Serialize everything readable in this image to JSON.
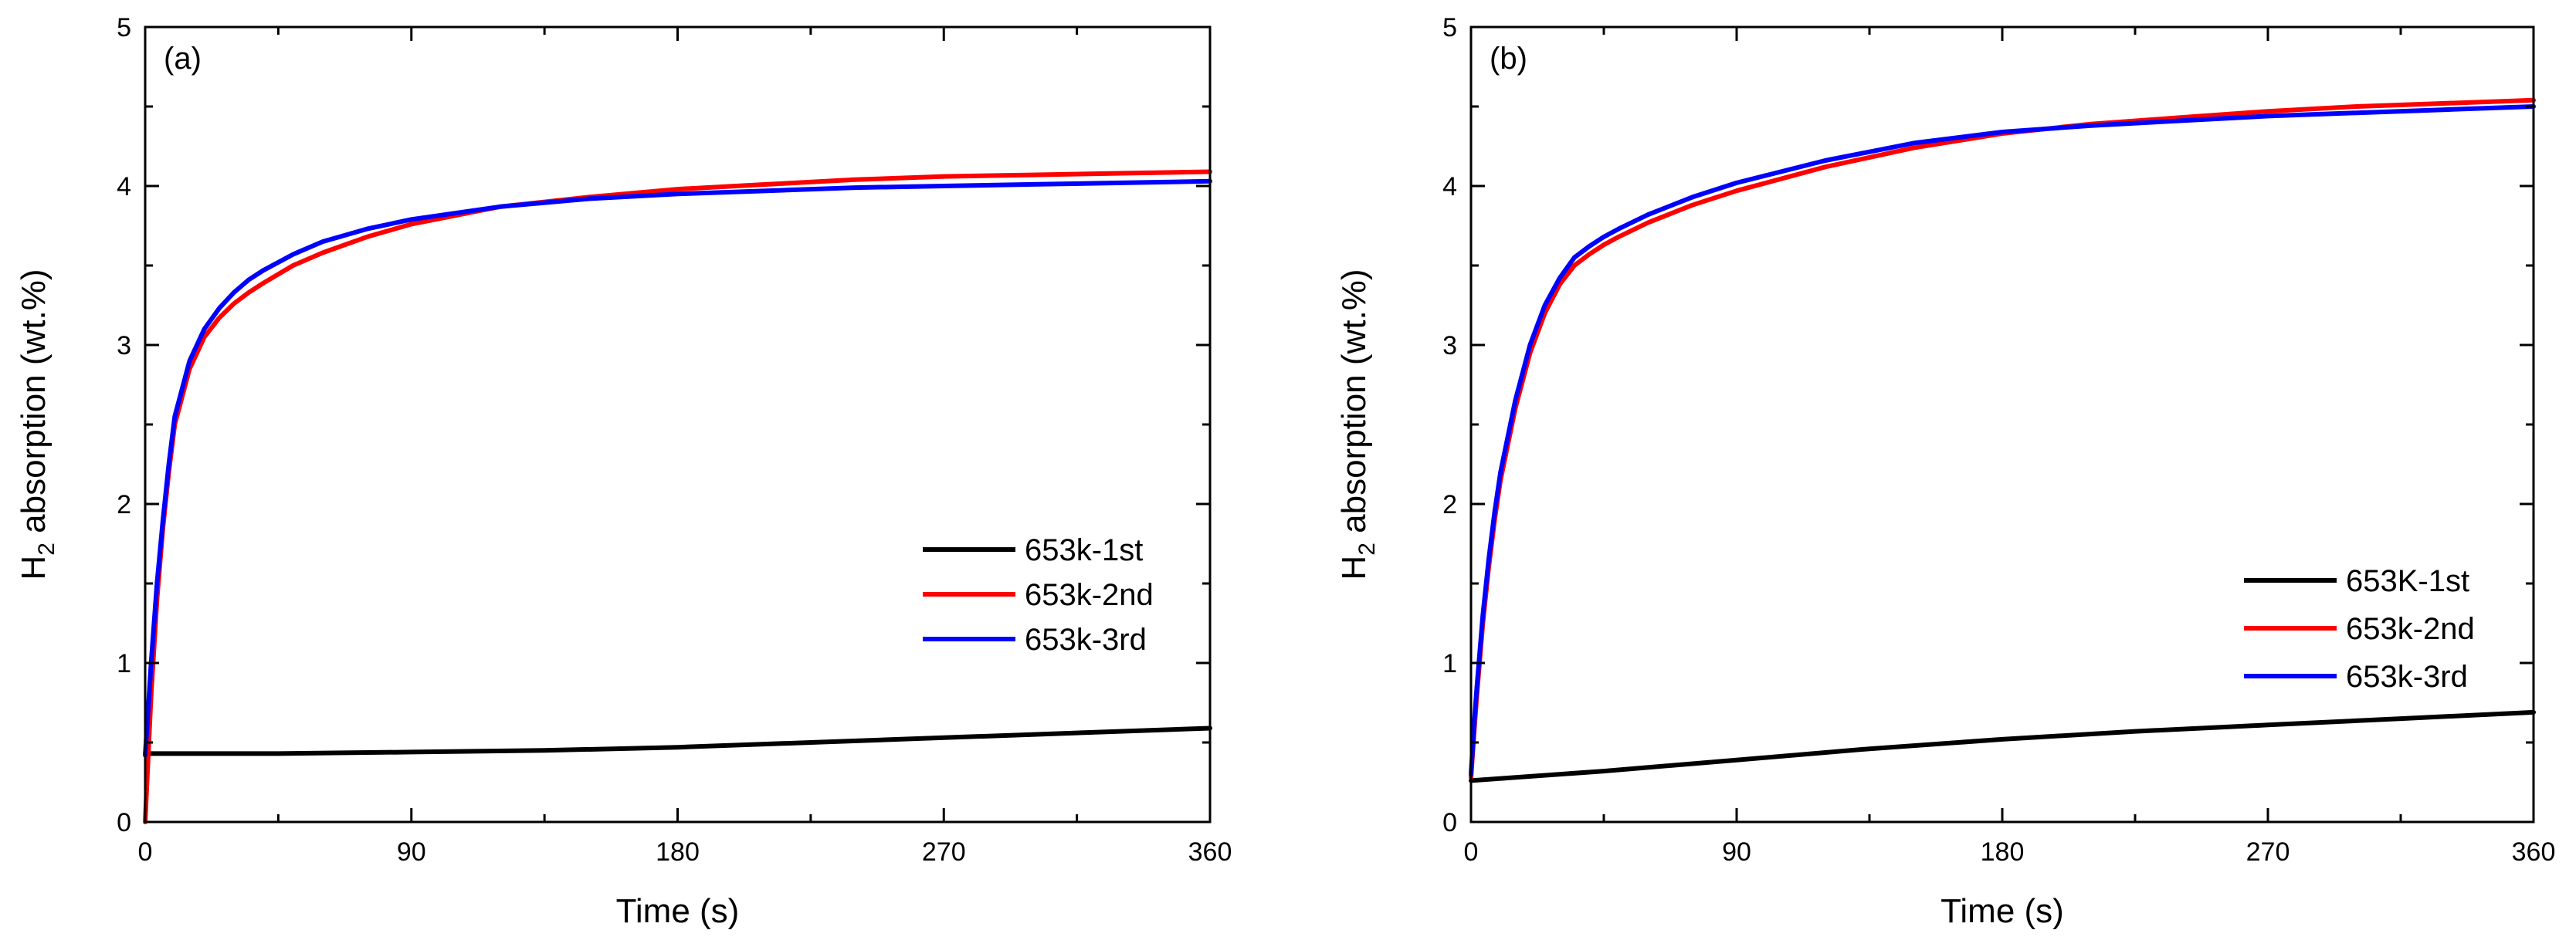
{
  "chart_data": [
    {
      "type": "line",
      "panel_label": "(a)",
      "xlabel": "Time (s)",
      "ylabel_main": "H",
      "ylabel_sub": "2",
      "ylabel_rest": " absorption (wt.%)",
      "xlim": [
        0,
        360
      ],
      "ylim": [
        0,
        5
      ],
      "xticks": [
        0,
        90,
        180,
        270,
        360
      ],
      "yticks": [
        0,
        1,
        2,
        3,
        4,
        5
      ],
      "legend_position": "center-right",
      "series": [
        {
          "name": "653k-1st",
          "color": "#000000",
          "x": [
            0,
            45,
            90,
            135,
            180,
            225,
            270,
            315,
            360
          ],
          "y": [
            0.43,
            0.43,
            0.44,
            0.45,
            0.47,
            0.5,
            0.53,
            0.56,
            0.59
          ]
        },
        {
          "name": "653k-2nd",
          "color": "#ff0000",
          "x": [
            0,
            1,
            2,
            4,
            6,
            8,
            10,
            15,
            20,
            25,
            30,
            35,
            40,
            50,
            60,
            75,
            90,
            120,
            150,
            180,
            210,
            240,
            270,
            300,
            330,
            360
          ],
          "y": [
            0,
            0.4,
            0.8,
            1.4,
            1.85,
            2.2,
            2.5,
            2.85,
            3.05,
            3.17,
            3.26,
            3.33,
            3.39,
            3.5,
            3.58,
            3.68,
            3.76,
            3.87,
            3.93,
            3.98,
            4.01,
            4.04,
            4.06,
            4.07,
            4.08,
            4.09
          ]
        },
        {
          "name": "653k-3rd",
          "color": "#0000ff",
          "x": [
            0,
            1,
            2,
            4,
            6,
            8,
            10,
            15,
            20,
            25,
            30,
            35,
            40,
            50,
            60,
            75,
            90,
            120,
            150,
            180,
            210,
            240,
            270,
            300,
            330,
            360
          ],
          "y": [
            0.42,
            0.7,
            1.0,
            1.5,
            1.9,
            2.25,
            2.55,
            2.9,
            3.1,
            3.23,
            3.33,
            3.41,
            3.47,
            3.57,
            3.65,
            3.73,
            3.79,
            3.87,
            3.92,
            3.95,
            3.97,
            3.99,
            4.0,
            4.01,
            4.02,
            4.03
          ]
        }
      ]
    },
    {
      "type": "line",
      "panel_label": "(b)",
      "xlabel": "Time (s)",
      "ylabel_main": "H",
      "ylabel_sub": "2",
      "ylabel_rest": " absorption (wt.%)",
      "xlim": [
        0,
        360
      ],
      "ylim": [
        0,
        5
      ],
      "xticks": [
        0,
        90,
        180,
        270,
        360
      ],
      "yticks": [
        0,
        1,
        2,
        3,
        4,
        5
      ],
      "legend_position": "lower-right",
      "series": [
        {
          "name": "653K-1st",
          "color": "#000000",
          "x": [
            0,
            45,
            90,
            135,
            180,
            225,
            270,
            315,
            360
          ],
          "y": [
            0.26,
            0.32,
            0.39,
            0.46,
            0.52,
            0.57,
            0.61,
            0.65,
            0.69
          ]
        },
        {
          "name": "653k-2nd",
          "color": "#ff0000",
          "x": [
            0,
            1,
            2,
            4,
            6,
            8,
            10,
            15,
            20,
            25,
            30,
            35,
            40,
            45,
            50,
            60,
            75,
            90,
            120,
            150,
            180,
            210,
            240,
            270,
            300,
            330,
            360
          ],
          "y": [
            0.28,
            0.55,
            0.8,
            1.25,
            1.6,
            1.9,
            2.15,
            2.6,
            2.95,
            3.2,
            3.38,
            3.5,
            3.57,
            3.63,
            3.68,
            3.77,
            3.88,
            3.97,
            4.12,
            4.24,
            4.33,
            4.39,
            4.43,
            4.47,
            4.5,
            4.52,
            4.54
          ]
        },
        {
          "name": "653k-3rd",
          "color": "#0000ff",
          "x": [
            0,
            1,
            2,
            4,
            6,
            8,
            10,
            15,
            20,
            25,
            30,
            35,
            40,
            45,
            50,
            60,
            75,
            90,
            120,
            150,
            180,
            210,
            240,
            270,
            300,
            330,
            360
          ],
          "y": [
            0.3,
            0.6,
            0.85,
            1.3,
            1.65,
            1.95,
            2.2,
            2.65,
            3.0,
            3.25,
            3.42,
            3.55,
            3.62,
            3.68,
            3.73,
            3.82,
            3.93,
            4.02,
            4.16,
            4.27,
            4.34,
            4.38,
            4.41,
            4.44,
            4.46,
            4.48,
            4.5
          ]
        }
      ]
    }
  ]
}
